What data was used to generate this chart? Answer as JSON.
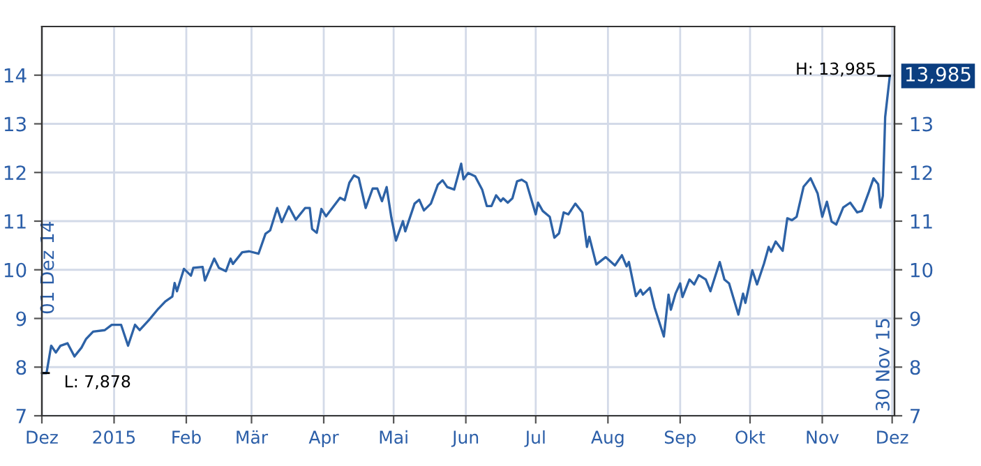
{
  "chart_data": {
    "type": "line",
    "x": [
      "2014-12-01",
      "2014-12-03",
      "2014-12-05",
      "2014-12-07",
      "2014-12-09",
      "2014-12-12",
      "2014-12-15",
      "2014-12-18",
      "2014-12-20",
      "2014-12-23",
      "2014-12-28",
      "2014-12-31",
      "2015-01-04",
      "2015-01-07",
      "2015-01-10",
      "2015-01-12",
      "2015-01-16",
      "2015-01-20",
      "2015-01-23",
      "2015-01-26",
      "2015-01-27",
      "2015-01-28",
      "2015-01-31",
      "2015-02-03",
      "2015-02-04",
      "2015-02-08",
      "2015-02-09",
      "2015-02-13",
      "2015-02-15",
      "2015-02-18",
      "2015-02-20",
      "2015-02-21",
      "2015-02-25",
      "2015-02-28",
      "2015-03-04",
      "2015-03-07",
      "2015-03-09",
      "2015-03-12",
      "2015-03-14",
      "2015-03-17",
      "2015-03-20",
      "2015-03-24",
      "2015-03-26",
      "2015-03-27",
      "2015-03-29",
      "2015-03-31",
      "2015-04-02",
      "2015-04-08",
      "2015-04-10",
      "2015-04-12",
      "2015-04-14",
      "2015-04-16",
      "2015-04-19",
      "2015-04-22",
      "2015-04-24",
      "2015-04-26",
      "2015-04-28",
      "2015-04-30",
      "2015-05-02",
      "2015-05-05",
      "2015-05-06",
      "2015-05-10",
      "2015-05-12",
      "2015-05-14",
      "2015-05-17",
      "2015-05-20",
      "2015-05-22",
      "2015-05-24",
      "2015-05-27",
      "2015-05-30",
      "2015-05-31",
      "2015-06-02",
      "2015-06-05",
      "2015-06-08",
      "2015-06-10",
      "2015-06-12",
      "2015-06-14",
      "2015-06-16",
      "2015-06-17",
      "2015-06-19",
      "2015-06-21",
      "2015-06-23",
      "2015-06-25",
      "2015-06-27",
      "2015-07-01",
      "2015-07-02",
      "2015-07-04",
      "2015-07-07",
      "2015-07-09",
      "2015-07-11",
      "2015-07-13",
      "2015-07-15",
      "2015-07-18",
      "2015-07-21",
      "2015-07-23",
      "2015-07-24",
      "2015-07-27",
      "2015-07-31",
      "2015-08-04",
      "2015-08-07",
      "2015-08-09",
      "2015-08-10",
      "2015-08-13",
      "2015-08-15",
      "2015-08-16",
      "2015-08-19",
      "2015-08-21",
      "2015-08-25",
      "2015-08-27",
      "2015-08-28",
      "2015-08-30",
      "2015-09-01",
      "2015-09-02",
      "2015-09-05",
      "2015-09-07",
      "2015-09-09",
      "2015-09-12",
      "2015-09-14",
      "2015-09-18",
      "2015-09-20",
      "2015-09-22",
      "2015-09-26",
      "2015-09-28",
      "2015-09-29",
      "2015-10-02",
      "2015-10-04",
      "2015-10-07",
      "2015-10-09",
      "2015-10-10",
      "2015-10-12",
      "2015-10-15",
      "2015-10-17",
      "2015-10-19",
      "2015-10-21",
      "2015-10-24",
      "2015-10-27",
      "2015-10-30",
      "2015-11-01",
      "2015-11-03",
      "2015-11-05",
      "2015-11-07",
      "2015-11-10",
      "2015-11-13",
      "2015-11-16",
      "2015-11-18",
      "2015-11-21",
      "2015-11-23",
      "2015-11-25",
      "2015-11-26",
      "2015-11-27",
      "2015-11-28",
      "2015-11-30"
    ],
    "series": [
      {
        "color": "#2d62a6",
        "values": [
          7.878,
          7.878,
          8.44,
          8.3,
          8.44,
          8.49,
          8.22,
          8.4,
          8.58,
          8.73,
          8.76,
          8.87,
          8.87,
          8.44,
          8.87,
          8.76,
          8.97,
          9.2,
          9.35,
          9.45,
          9.73,
          9.56,
          10.02,
          9.88,
          10.04,
          10.06,
          9.78,
          10.23,
          10.04,
          9.97,
          10.23,
          10.12,
          10.36,
          10.38,
          10.33,
          10.74,
          10.81,
          11.27,
          10.98,
          11.3,
          11.03,
          11.27,
          11.27,
          10.84,
          10.76,
          11.25,
          11.1,
          11.48,
          11.43,
          11.79,
          11.94,
          11.89,
          11.27,
          11.67,
          11.67,
          11.41,
          11.7,
          11.08,
          10.6,
          11.0,
          10.79,
          11.36,
          11.44,
          11.22,
          11.36,
          11.75,
          11.84,
          11.7,
          11.65,
          12.18,
          11.86,
          11.99,
          11.92,
          11.65,
          11.31,
          11.31,
          11.53,
          11.41,
          11.47,
          11.38,
          11.47,
          11.82,
          11.85,
          11.79,
          11.14,
          11.38,
          11.21,
          11.09,
          10.66,
          10.75,
          11.18,
          11.14,
          11.36,
          11.18,
          10.47,
          10.68,
          10.11,
          10.26,
          10.09,
          10.3,
          10.07,
          10.16,
          9.46,
          9.59,
          9.49,
          9.63,
          9.23,
          8.63,
          9.49,
          9.18,
          9.51,
          9.72,
          9.44,
          9.8,
          9.7,
          9.89,
          9.8,
          9.56,
          10.16,
          9.8,
          9.72,
          9.08,
          9.51,
          9.32,
          9.99,
          9.7,
          10.13,
          10.47,
          10.37,
          10.58,
          10.39,
          11.06,
          11.02,
          11.09,
          11.71,
          11.88,
          11.57,
          11.09,
          11.4,
          10.99,
          10.93,
          11.28,
          11.38,
          11.18,
          11.21,
          11.6,
          11.88,
          11.76,
          11.28,
          11.52,
          13.14,
          13.985
        ]
      }
    ],
    "xlim": [
      "2014-12-01",
      "2015-12-02"
    ],
    "xticks": [
      {
        "value": "2014-12-01",
        "label": "Dez"
      },
      {
        "value": "2015-01-01",
        "label": "2015"
      },
      {
        "value": "2015-02-01",
        "label": "Feb"
      },
      {
        "value": "2015-03-01",
        "label": "Mär"
      },
      {
        "value": "2015-04-01",
        "label": "Apr"
      },
      {
        "value": "2015-05-01",
        "label": "Mai"
      },
      {
        "value": "2015-06-01",
        "label": "Jun"
      },
      {
        "value": "2015-07-01",
        "label": "Jul"
      },
      {
        "value": "2015-08-01",
        "label": "Aug"
      },
      {
        "value": "2015-09-01",
        "label": "Sep"
      },
      {
        "value": "2015-10-01",
        "label": "Okt"
      },
      {
        "value": "2015-11-01",
        "label": "Nov"
      },
      {
        "value": "2015-12-01",
        "label": "Dez"
      }
    ],
    "ylim": [
      7,
      15
    ],
    "yticks": [
      7,
      8,
      9,
      10,
      11,
      12,
      13,
      14
    ],
    "y2lim": [
      7,
      15
    ],
    "y2ticks": [
      7,
      8,
      9,
      10,
      11,
      12,
      13
    ],
    "grid": true,
    "marker": "none",
    "line_style": "solid",
    "annotations": [
      {
        "text": "L: 7,878",
        "x": "2014-12-01",
        "y": 7.878
      },
      {
        "text": "H: 13,985",
        "x": "2015-11-30",
        "y": 13.985
      },
      {
        "text": "13,985",
        "x": "2015-11-30",
        "y": 13.985
      },
      "01 Dez 14",
      "30 Nov 15"
    ]
  }
}
